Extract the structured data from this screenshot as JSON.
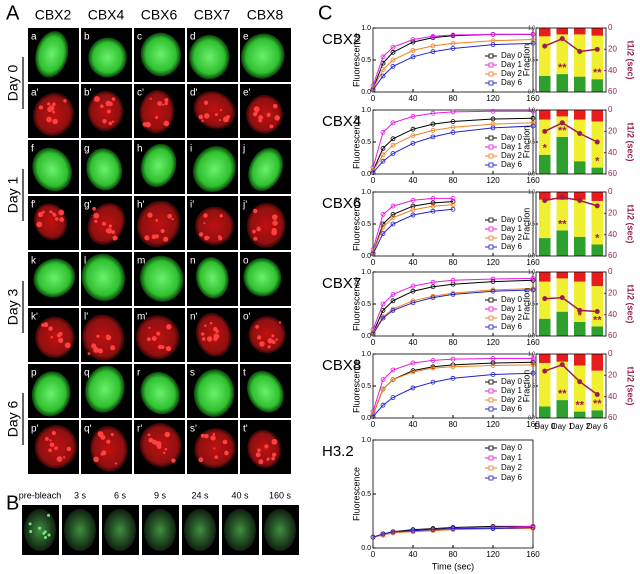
{
  "figure": {
    "panel_a": {
      "label": "A",
      "columns": [
        "CBX2",
        "CBX4",
        "CBX6",
        "CBX7",
        "CBX8"
      ],
      "rows": [
        {
          "label": "Day 0",
          "green": [
            "a",
            "b",
            "c",
            "d",
            "e"
          ],
          "red": [
            "a'",
            "b'",
            "c'",
            "d'",
            "e'"
          ]
        },
        {
          "label": "Day 1",
          "green": [
            "f",
            "g",
            "h",
            "i",
            "j"
          ],
          "red": [
            "f'",
            "g'",
            "h'",
            "i'",
            "j'"
          ]
        },
        {
          "label": "Day 3",
          "green": [
            "k",
            "l",
            "m",
            "n",
            "o"
          ],
          "red": [
            "k'",
            "l'",
            "m'",
            "n'",
            "o'"
          ]
        },
        {
          "label": "Day 6",
          "green": [
            "p",
            "q",
            "r",
            "s",
            "t"
          ],
          "red": [
            "p'",
            "q'",
            "r'",
            "s'",
            "t'"
          ]
        }
      ]
    },
    "panel_b": {
      "label": "B",
      "frames": [
        "pre-bleach",
        "3 s",
        "6 s",
        "9 s",
        "24 s",
        "40 s",
        "160 s"
      ]
    },
    "panel_c": {
      "label": "C"
    }
  },
  "chart_data": [
    {
      "type": "line",
      "title": "CBX2",
      "ylabel": "Fluorescence",
      "x": [
        0,
        10,
        20,
        40,
        60,
        80,
        120,
        160
      ],
      "xlim": [
        0,
        160
      ],
      "xticks": [
        0,
        40,
        80,
        120,
        160
      ],
      "ylim": [
        0,
        1.0
      ],
      "yticks": [
        {
          "value": 0,
          "label": "0.0"
        },
        {
          "value": 0.5,
          "label": "0.5"
        },
        {
          "value": 1.0,
          "label": "1.0"
        }
      ],
      "legend": "lower right",
      "series": [
        {
          "name": "Day 0",
          "color": "#000000",
          "values": [
            0.05,
            0.45,
            0.62,
            0.78,
            0.85,
            0.88,
            0.9,
            0.9
          ]
        },
        {
          "name": "Day 1",
          "color": "#e619e6",
          "values": [
            0.1,
            0.55,
            0.7,
            0.82,
            0.87,
            0.89,
            0.9,
            0.9
          ]
        },
        {
          "name": "Day 2",
          "color": "#f08020",
          "values": [
            0.05,
            0.35,
            0.5,
            0.65,
            0.72,
            0.76,
            0.8,
            0.82
          ]
        },
        {
          "name": "Day 6",
          "color": "#2222cc",
          "values": [
            0.03,
            0.25,
            0.4,
            0.55,
            0.63,
            0.68,
            0.74,
            0.76
          ]
        }
      ]
    },
    {
      "type": "bar",
      "ylabel": "Fraction",
      "y2label": "t1/2 (sec)",
      "categories": [
        null,
        null,
        null,
        null
      ],
      "ylim": [
        0,
        1.0
      ],
      "yticks": [
        {
          "value": 0,
          "label": "0.0"
        },
        {
          "value": 0.5,
          "label": "0.5"
        },
        {
          "value": 1.0,
          "label": "1.0"
        }
      ],
      "y2lim": [
        60,
        0
      ],
      "y2ticks": [
        0,
        20,
        40,
        60
      ],
      "series": [
        {
          "color": "#2ea02e",
          "values": [
            0.25,
            0.28,
            0.24,
            0.2
          ]
        },
        {
          "color": "#f0f030",
          "values": [
            0.62,
            0.62,
            0.66,
            0.68
          ]
        },
        {
          "color": "#e81c1c",
          "values": [
            0.13,
            0.1,
            0.1,
            0.12
          ]
        },
        {
          "type": "line",
          "axis": "y2",
          "color": "#9a1f50",
          "values": [
            17,
            10,
            22,
            20
          ]
        }
      ],
      "annotations": [
        null,
        "**",
        null,
        "**"
      ]
    },
    {
      "type": "line",
      "title": "CBX4",
      "ylabel": "Fluorescence",
      "x": [
        0,
        10,
        20,
        40,
        60,
        80,
        120,
        160
      ],
      "xlim": [
        0,
        160
      ],
      "xticks": [
        0,
        40,
        80,
        120,
        160
      ],
      "ylim": [
        0,
        1.0
      ],
      "yticks": [
        {
          "value": 0,
          "label": "0.0"
        },
        {
          "value": 0.5,
          "label": "0.5"
        },
        {
          "value": 1.0,
          "label": "1.0"
        }
      ],
      "legend": "lower right",
      "series": [
        {
          "name": "Day 0",
          "color": "#000000",
          "values": [
            0.05,
            0.4,
            0.55,
            0.7,
            0.78,
            0.82,
            0.86,
            0.87
          ]
        },
        {
          "name": "Day 1",
          "color": "#e619e6",
          "values": [
            0.1,
            0.65,
            0.8,
            0.9,
            0.95,
            0.97,
            0.98,
            0.98
          ]
        },
        {
          "name": "Day 2",
          "color": "#f08020",
          "values": [
            0.05,
            0.3,
            0.45,
            0.6,
            0.68,
            0.73,
            0.78,
            0.8
          ]
        },
        {
          "name": "Day 6",
          "color": "#2222cc",
          "values": [
            0.02,
            0.2,
            0.32,
            0.48,
            0.58,
            0.65,
            0.72,
            0.75
          ]
        }
      ]
    },
    {
      "type": "bar",
      "ylabel": "Fraction",
      "y2label": "t1/2 (sec)",
      "categories": [
        null,
        null,
        null,
        null
      ],
      "ylim": [
        0,
        1.0
      ],
      "yticks": [
        {
          "value": 0,
          "label": "0.0"
        },
        {
          "value": 0.5,
          "label": "0.5"
        },
        {
          "value": 1.0,
          "label": "1.0"
        }
      ],
      "y2lim": [
        60,
        0
      ],
      "y2ticks": [
        0,
        20,
        40,
        60
      ],
      "series": [
        {
          "color": "#2ea02e",
          "values": [
            0.3,
            0.58,
            0.2,
            0.1
          ]
        },
        {
          "color": "#f0f030",
          "values": [
            0.55,
            0.32,
            0.65,
            0.72
          ]
        },
        {
          "color": "#e81c1c",
          "values": [
            0.15,
            0.1,
            0.15,
            0.18
          ]
        },
        {
          "type": "line",
          "axis": "y2",
          "color": "#9a1f50",
          "values": [
            20,
            12,
            22,
            30
          ]
        }
      ],
      "annotations": [
        "*",
        "**",
        null,
        "*"
      ]
    },
    {
      "type": "line",
      "title": "CBX6",
      "ylabel": "Fluorescence",
      "x": [
        0,
        10,
        20,
        40,
        60,
        80
      ],
      "xlim": [
        0,
        160
      ],
      "xticks": [
        0,
        40,
        80,
        120,
        160
      ],
      "ylim": [
        0,
        1.0
      ],
      "yticks": [
        {
          "value": 0,
          "label": "0.0"
        },
        {
          "value": 0.5,
          "label": "0.5"
        },
        {
          "value": 1.0,
          "label": "1.0"
        }
      ],
      "legend": "lower right",
      "series": [
        {
          "name": "Day 0",
          "color": "#000000",
          "values": [
            0.05,
            0.5,
            0.65,
            0.78,
            0.83,
            0.85
          ]
        },
        {
          "name": "Day 1",
          "color": "#e619e6",
          "values": [
            0.1,
            0.65,
            0.78,
            0.87,
            0.9,
            0.9
          ]
        },
        {
          "name": "Day 2",
          "color": "#f08020",
          "values": [
            0.05,
            0.45,
            0.6,
            0.72,
            0.78,
            0.8
          ]
        },
        {
          "name": "Day 6",
          "color": "#2222cc",
          "values": [
            0.03,
            0.35,
            0.5,
            0.64,
            0.7,
            0.73
          ]
        }
      ]
    },
    {
      "type": "bar",
      "ylabel": "Fraction",
      "y2label": "t1/2 (sec)",
      "categories": [
        null,
        null,
        null,
        null
      ],
      "ylim": [
        0,
        1.0
      ],
      "yticks": [
        {
          "value": 0,
          "label": "0.0"
        },
        {
          "value": 0.5,
          "label": "0.5"
        },
        {
          "value": 1.0,
          "label": "1.0"
        }
      ],
      "y2lim": [
        60,
        0
      ],
      "y2ticks": [
        0,
        20,
        40,
        60
      ],
      "series": [
        {
          "color": "#2ea02e",
          "values": [
            0.28,
            0.4,
            0.3,
            0.18
          ]
        },
        {
          "color": "#f0f030",
          "values": [
            0.6,
            0.48,
            0.58,
            0.68
          ]
        },
        {
          "color": "#e81c1c",
          "values": [
            0.12,
            0.12,
            0.12,
            0.14
          ]
        },
        {
          "type": "line",
          "axis": "y2",
          "color": "#9a1f50",
          "values": [
            8,
            5,
            8,
            13
          ]
        }
      ],
      "annotations": [
        null,
        "**",
        null,
        "*"
      ]
    },
    {
      "type": "line",
      "title": "CBX7",
      "ylabel": "Fluorescence",
      "x": [
        0,
        10,
        20,
        40,
        60,
        80,
        120,
        160
      ],
      "xlim": [
        0,
        160
      ],
      "xticks": [
        0,
        40,
        80,
        120,
        160
      ],
      "ylim": [
        0,
        1.0
      ],
      "yticks": [
        {
          "value": 0,
          "label": "0.0"
        },
        {
          "value": 0.5,
          "label": "0.5"
        },
        {
          "value": 1.0,
          "label": "1.0"
        }
      ],
      "legend": "lower right",
      "series": [
        {
          "name": "Day 0",
          "color": "#000000",
          "values": [
            0.05,
            0.4,
            0.55,
            0.7,
            0.77,
            0.81,
            0.85,
            0.87
          ]
        },
        {
          "name": "Day 1",
          "color": "#e619e6",
          "values": [
            0.1,
            0.5,
            0.65,
            0.78,
            0.84,
            0.87,
            0.89,
            0.9
          ]
        },
        {
          "name": "Day 2",
          "color": "#f08020",
          "values": [
            0.05,
            0.3,
            0.42,
            0.55,
            0.62,
            0.67,
            0.72,
            0.74
          ]
        },
        {
          "name": "Day 6",
          "color": "#2222cc",
          "values": [
            0.03,
            0.28,
            0.4,
            0.52,
            0.6,
            0.65,
            0.7,
            0.72
          ]
        }
      ]
    },
    {
      "type": "bar",
      "ylabel": "Fraction",
      "y2label": "t1/2 (sec)",
      "categories": [
        null,
        null,
        null,
        null
      ],
      "ylim": [
        0,
        1.0
      ],
      "yticks": [
        {
          "value": 0,
          "label": "0.0"
        },
        {
          "value": 0.5,
          "label": "0.5"
        },
        {
          "value": 1.0,
          "label": "1.0"
        }
      ],
      "y2lim": [
        60,
        0
      ],
      "y2ticks": [
        0,
        20,
        40,
        60
      ],
      "series": [
        {
          "color": "#2ea02e",
          "values": [
            0.27,
            0.38,
            0.22,
            0.15
          ]
        },
        {
          "color": "#f0f030",
          "values": [
            0.58,
            0.52,
            0.63,
            0.63
          ]
        },
        {
          "color": "#e81c1c",
          "values": [
            0.15,
            0.1,
            0.15,
            0.22
          ]
        },
        {
          "type": "line",
          "axis": "y2",
          "color": "#9a1f50",
          "values": [
            25,
            24,
            36,
            37
          ]
        }
      ],
      "annotations": [
        null,
        null,
        "*",
        "**"
      ]
    },
    {
      "type": "line",
      "title": "CBX8",
      "ylabel": "Fluorescence",
      "x": [
        0,
        10,
        20,
        40,
        60,
        80,
        120,
        160
      ],
      "xlim": [
        0,
        160
      ],
      "xticks": [
        0,
        40,
        80,
        120,
        160
      ],
      "ylim": [
        0,
        1.0
      ],
      "yticks": [
        {
          "value": 0,
          "label": "0.0"
        },
        {
          "value": 0.5,
          "label": "0.5"
        },
        {
          "value": 1.0,
          "label": "1.0"
        }
      ],
      "legend": "lower right",
      "series": [
        {
          "name": "Day 0",
          "color": "#000000",
          "values": [
            0.05,
            0.45,
            0.6,
            0.74,
            0.8,
            0.83,
            0.86,
            0.87
          ]
        },
        {
          "name": "Day 1",
          "color": "#e619e6",
          "values": [
            0.1,
            0.6,
            0.75,
            0.86,
            0.9,
            0.92,
            0.93,
            0.93
          ]
        },
        {
          "name": "Day 2",
          "color": "#f08020",
          "values": [
            0.05,
            0.45,
            0.6,
            0.72,
            0.78,
            0.8,
            0.82,
            0.83
          ]
        },
        {
          "name": "Day 6",
          "color": "#2222cc",
          "values": [
            0.02,
            0.2,
            0.32,
            0.47,
            0.56,
            0.62,
            0.68,
            0.7
          ]
        }
      ]
    },
    {
      "type": "bar",
      "ylabel": "Fraction",
      "y2label": "t1/2 (sec)",
      "categories": [
        "Day 0",
        "Day 1",
        "Day 2",
        "Day 6"
      ],
      "ylim": [
        0,
        1.0
      ],
      "yticks": [
        {
          "value": 0,
          "label": "0.0"
        },
        {
          "value": 0.5,
          "label": "0.5"
        },
        {
          "value": 1.0,
          "label": "1.0"
        }
      ],
      "y2lim": [
        60,
        0
      ],
      "y2ticks": [
        0,
        20,
        40,
        60
      ],
      "series": [
        {
          "color": "#2ea02e",
          "values": [
            0.18,
            0.28,
            0.1,
            0.12
          ]
        },
        {
          "color": "#f0f030",
          "values": [
            0.68,
            0.6,
            0.72,
            0.62
          ]
        },
        {
          "color": "#e81c1c",
          "values": [
            0.14,
            0.12,
            0.18,
            0.26
          ]
        },
        {
          "type": "line",
          "axis": "y2",
          "color": "#9a1f50",
          "values": [
            16,
            10,
            26,
            38
          ]
        }
      ],
      "annotations": [
        null,
        "**",
        "**",
        "**"
      ]
    },
    {
      "type": "line",
      "title": "H3.2",
      "ylabel": "Fluorescence",
      "xlabel": "Time (sec)",
      "x": [
        0,
        10,
        20,
        40,
        60,
        80,
        120,
        160
      ],
      "xlim": [
        0,
        160
      ],
      "xticks": [
        0,
        40,
        80,
        120,
        160
      ],
      "ylim": [
        0,
        1.0
      ],
      "yticks": [
        {
          "value": 0,
          "label": "0.0"
        },
        {
          "value": 0.5,
          "label": "0.5"
        },
        {
          "value": 1.0,
          "label": "1.0"
        }
      ],
      "legend": "upper right",
      "series": [
        {
          "name": "Day 0",
          "color": "#000000",
          "values": [
            0.1,
            0.13,
            0.15,
            0.17,
            0.18,
            0.19,
            0.2,
            0.2
          ]
        },
        {
          "name": "Day 1",
          "color": "#e619e6",
          "values": [
            0.1,
            0.12,
            0.14,
            0.16,
            0.17,
            0.18,
            0.19,
            0.2
          ]
        },
        {
          "name": "Day 2",
          "color": "#f08020",
          "values": [
            0.1,
            0.12,
            0.14,
            0.15,
            0.16,
            0.17,
            0.18,
            0.18
          ]
        },
        {
          "name": "Day 6",
          "color": "#2222cc",
          "values": [
            0.1,
            0.13,
            0.15,
            0.16,
            0.17,
            0.18,
            0.18,
            0.19
          ]
        }
      ]
    }
  ]
}
